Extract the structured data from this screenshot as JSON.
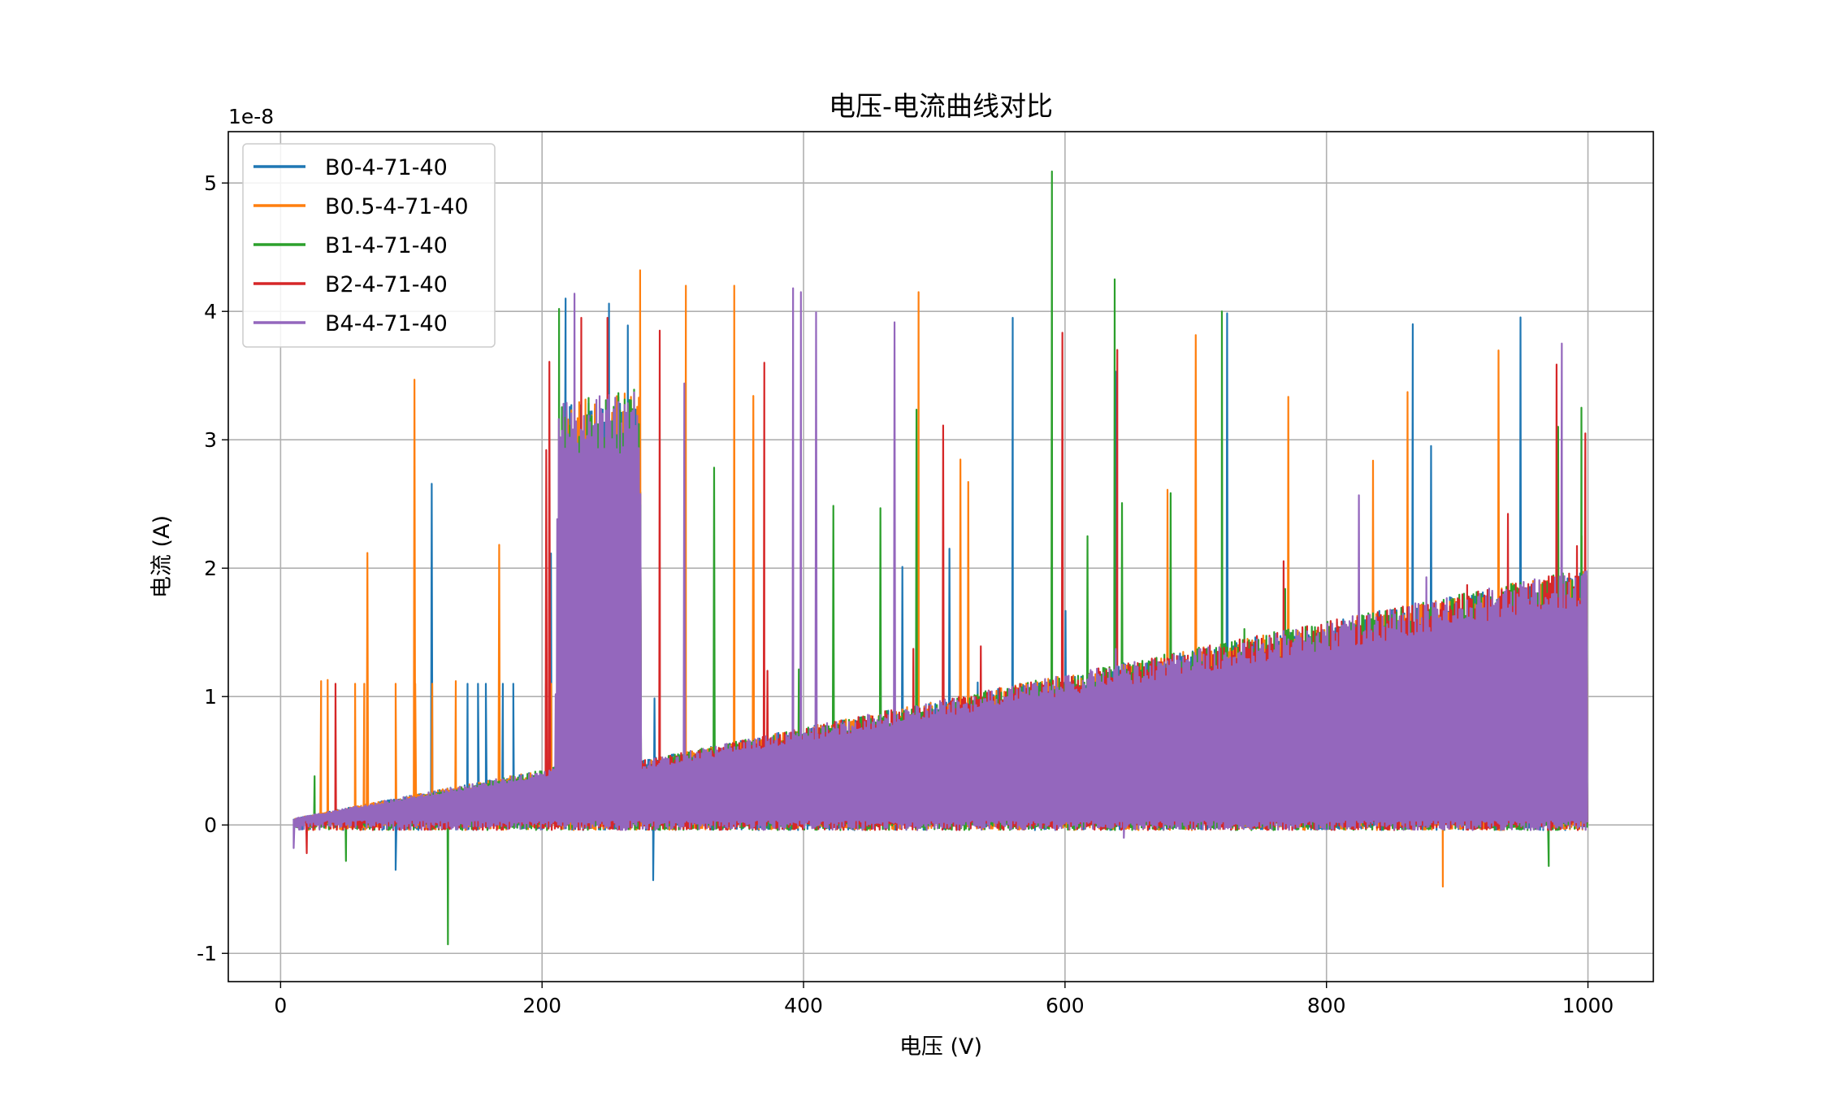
{
  "chart_data": {
    "type": "line",
    "title": "电压-电流曲线对比",
    "xlabel": "电压 (V)",
    "ylabel": "电流 (A)",
    "y_offset_label": "1e-8",
    "y_scale": 1e-08,
    "xlim": [
      -40,
      1050
    ],
    "ylim": [
      -1.22,
      5.4
    ],
    "xticks": [
      0,
      200,
      400,
      600,
      800,
      1000
    ],
    "yticks": [
      -1,
      0,
      1,
      2,
      3,
      4,
      5
    ],
    "grid": true,
    "legend_position": "top-left",
    "x_range": [
      10,
      1000
    ],
    "series": [
      {
        "name": "B0-4-71-40",
        "color": "#1f77b4",
        "baseline_points": [
          [
            10,
            0.05
          ],
          [
            210,
            0.45
          ],
          [
            215,
            3.3
          ],
          [
            275,
            3.4
          ],
          [
            276,
            0.5
          ],
          [
            1000,
            2.0
          ]
        ],
        "peaks": [
          [
            143,
            1.1
          ],
          [
            151,
            1.1
          ],
          [
            157,
            1.1
          ],
          [
            170,
            1.1
          ],
          [
            178,
            1.1
          ],
          [
            203,
            1.1
          ],
          [
            218,
            4.1
          ],
          [
            560,
            3.95
          ],
          [
            866,
            3.9
          ]
        ],
        "dips": [
          [
            88,
            -0.35
          ],
          [
            285,
            -0.43
          ]
        ]
      },
      {
        "name": "B0.5-4-71-40",
        "color": "#ff7f0e",
        "baseline_points": [
          [
            10,
            0.05
          ],
          [
            210,
            0.45
          ],
          [
            215,
            3.3
          ],
          [
            275,
            3.4
          ],
          [
            276,
            0.5
          ],
          [
            1000,
            2.0
          ]
        ],
        "peaks": [
          [
            31,
            1.12
          ],
          [
            36,
            1.13
          ],
          [
            57,
            1.1
          ],
          [
            64,
            1.1
          ],
          [
            88,
            1.1
          ],
          [
            103,
            1.1
          ],
          [
            116,
            1.1
          ],
          [
            134,
            1.12
          ],
          [
            207,
            1.1
          ],
          [
            275,
            4.32
          ],
          [
            310,
            4.2
          ],
          [
            347,
            4.2
          ],
          [
            488,
            4.15
          ]
        ],
        "dips": [
          [
            889,
            -0.48
          ]
        ]
      },
      {
        "name": "B1-4-71-40",
        "color": "#2ca02c",
        "baseline_points": [
          [
            10,
            0.02
          ],
          [
            210,
            0.45
          ],
          [
            215,
            3.3
          ],
          [
            275,
            3.4
          ],
          [
            276,
            0.5
          ],
          [
            1000,
            2.0
          ]
        ],
        "peaks": [
          [
            26,
            0.38
          ],
          [
            213,
            4.02
          ],
          [
            590,
            5.09
          ],
          [
            638,
            4.25
          ],
          [
            720,
            4.0
          ],
          [
            995,
            3.25
          ]
        ],
        "dips": [
          [
            50,
            -0.28
          ],
          [
            128,
            -0.93
          ],
          [
            970,
            -0.32
          ]
        ]
      },
      {
        "name": "B2-4-71-40",
        "color": "#d62728",
        "baseline_points": [
          [
            10,
            0.0
          ],
          [
            210,
            0.4
          ],
          [
            214,
            0.45
          ],
          [
            275,
            0.45
          ],
          [
            276,
            0.5
          ],
          [
            1000,
            2.0
          ]
        ],
        "peaks": [
          [
            42,
            1.1
          ],
          [
            230,
            3.95
          ],
          [
            250,
            3.95
          ],
          [
            290,
            3.85
          ],
          [
            370,
            3.6
          ],
          [
            640,
            3.7
          ],
          [
            998,
            3.05
          ]
        ],
        "dips": [
          [
            20,
            -0.22
          ]
        ]
      },
      {
        "name": "B4-4-71-40",
        "color": "#9467bd",
        "baseline_points": [
          [
            10,
            0.05
          ],
          [
            210,
            0.45
          ],
          [
            212,
            3.3
          ],
          [
            275,
            3.4
          ],
          [
            276,
            0.5
          ],
          [
            1000,
            2.0
          ]
        ],
        "peaks": [
          [
            392,
            4.18
          ],
          [
            398,
            4.15
          ],
          [
            980,
            3.75
          ]
        ],
        "dips": [
          [
            10,
            -0.18
          ],
          [
            645,
            -0.1
          ]
        ]
      }
    ]
  }
}
